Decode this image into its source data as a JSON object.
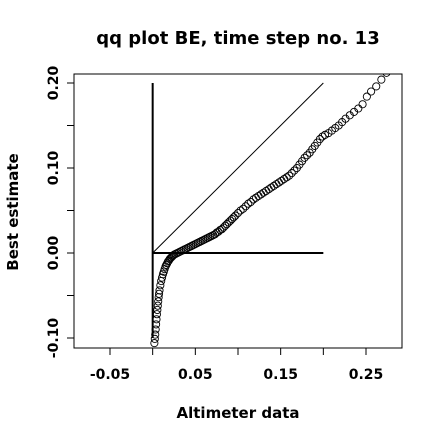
{
  "chart_data": {
    "type": "scatter",
    "title": "qq plot BE, time step no. 13",
    "xlabel": "Altimeter data",
    "ylabel": "Best estimate",
    "xlim": [
      -0.1,
      0.3
    ],
    "ylim": [
      -0.11,
      0.21
    ],
    "x_ticks": [
      {
        "value": -0.05,
        "label": "-0.05"
      },
      {
        "value": 0.0,
        "label": ""
      },
      {
        "value": 0.05,
        "label": "0.05"
      },
      {
        "value": 0.1,
        "label": ""
      },
      {
        "value": 0.15,
        "label": "0.15"
      },
      {
        "value": 0.2,
        "label": ""
      },
      {
        "value": 0.25,
        "label": "0.25"
      }
    ],
    "y_ticks": [
      {
        "value": -0.1,
        "label": "-0.10"
      },
      {
        "value": -0.05,
        "label": ""
      },
      {
        "value": 0.0,
        "label": "0.00"
      },
      {
        "value": 0.05,
        "label": ""
      },
      {
        "value": 0.1,
        "label": "0.10"
      },
      {
        "value": 0.15,
        "label": ""
      },
      {
        "value": 0.2,
        "label": "0.20"
      }
    ],
    "reference_lines": {
      "diagonal": {
        "from": [
          0.0,
          0.0
        ],
        "to": [
          0.2,
          0.2
        ]
      },
      "vertical": {
        "x": 0.0,
        "y_from": 0.0,
        "y_to": 0.2
      },
      "vertical_thick": {
        "x": 0.0,
        "y_from": -0.1,
        "y_to": 0.0
      },
      "horizontal": {
        "y": 0.0,
        "x_from": 0.0,
        "x_to": 0.2
      }
    },
    "series": [
      {
        "marker": "open-circle",
        "x": [
          0.002,
          0.0025,
          0.003,
          0.0035,
          0.004,
          0.0045,
          0.005,
          0.0055,
          0.006,
          0.0065,
          0.007,
          0.0075,
          0.008,
          0.009,
          0.01,
          0.011,
          0.012,
          0.013,
          0.014,
          0.015,
          0.016,
          0.017,
          0.018,
          0.019,
          0.02,
          0.021,
          0.022,
          0.023,
          0.024,
          0.025,
          0.027,
          0.029,
          0.031,
          0.033,
          0.035,
          0.037,
          0.039,
          0.041,
          0.043,
          0.045,
          0.047,
          0.049,
          0.051,
          0.053,
          0.055,
          0.057,
          0.059,
          0.061,
          0.063,
          0.065,
          0.067,
          0.069,
          0.071,
          0.073,
          0.075,
          0.077,
          0.079,
          0.081,
          0.083,
          0.085,
          0.087,
          0.089,
          0.091,
          0.093,
          0.095,
          0.097,
          0.1,
          0.103,
          0.106,
          0.109,
          0.112,
          0.115,
          0.118,
          0.121,
          0.124,
          0.127,
          0.13,
          0.133,
          0.136,
          0.139,
          0.142,
          0.145,
          0.148,
          0.151,
          0.154,
          0.157,
          0.16,
          0.163,
          0.166,
          0.169,
          0.172,
          0.175,
          0.178,
          0.181,
          0.184,
          0.187,
          0.19,
          0.193,
          0.196,
          0.199,
          0.202,
          0.206,
          0.21,
          0.214,
          0.218,
          0.222,
          0.226,
          0.231,
          0.236,
          0.241,
          0.246,
          0.251,
          0.256,
          0.262,
          0.268,
          0.274
        ],
        "y": [
          -0.106,
          -0.101,
          -0.096,
          -0.09,
          -0.084,
          -0.078,
          -0.072,
          -0.067,
          -0.062,
          -0.057,
          -0.052,
          -0.048,
          -0.044,
          -0.038,
          -0.033,
          -0.029,
          -0.025,
          -0.022,
          -0.019,
          -0.016,
          -0.014,
          -0.012,
          -0.01,
          -0.009,
          -0.007,
          -0.006,
          -0.005,
          -0.004,
          -0.003,
          -0.002,
          -0.001,
          0.0,
          0.001,
          0.002,
          0.003,
          0.004,
          0.005,
          0.006,
          0.007,
          0.008,
          0.009,
          0.01,
          0.011,
          0.012,
          0.013,
          0.014,
          0.015,
          0.016,
          0.017,
          0.018,
          0.019,
          0.02,
          0.021,
          0.022,
          0.024,
          0.025,
          0.027,
          0.028,
          0.03,
          0.032,
          0.034,
          0.036,
          0.038,
          0.04,
          0.042,
          0.044,
          0.047,
          0.05,
          0.052,
          0.055,
          0.058,
          0.06,
          0.063,
          0.065,
          0.067,
          0.069,
          0.071,
          0.073,
          0.075,
          0.077,
          0.079,
          0.081,
          0.083,
          0.085,
          0.087,
          0.089,
          0.091,
          0.094,
          0.097,
          0.1,
          0.104,
          0.108,
          0.112,
          0.115,
          0.118,
          0.122,
          0.126,
          0.13,
          0.134,
          0.137,
          0.139,
          0.141,
          0.144,
          0.147,
          0.15,
          0.154,
          0.158,
          0.162,
          0.166,
          0.17,
          0.175,
          0.184,
          0.19,
          0.196,
          0.204,
          0.212
        ]
      }
    ]
  }
}
